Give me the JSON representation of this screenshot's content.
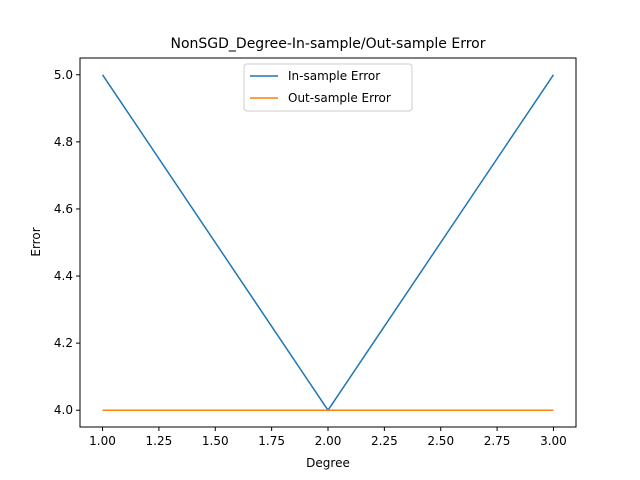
{
  "chart_data": {
    "type": "line",
    "title": "NonSGD_Degree-In-sample/Out-sample Error",
    "xlabel": "Degree",
    "ylabel": "Error",
    "xlim": [
      0.9,
      3.1
    ],
    "ylim": [
      3.95,
      5.05
    ],
    "xticks": [
      1.0,
      1.25,
      1.5,
      1.75,
      2.0,
      2.25,
      2.5,
      2.75,
      3.0
    ],
    "xtick_labels": [
      "1.00",
      "1.25",
      "1.50",
      "1.75",
      "2.00",
      "2.25",
      "2.50",
      "2.75",
      "3.00"
    ],
    "yticks": [
      4.0,
      4.2,
      4.4,
      4.6,
      4.8,
      5.0
    ],
    "ytick_labels": [
      "4.0",
      "4.2",
      "4.4",
      "4.6",
      "4.8",
      "5.0"
    ],
    "grid": false,
    "legend_position": "top-center",
    "x": [
      1,
      2,
      3
    ],
    "series": [
      {
        "name": "In-sample Error",
        "color": "#1f77b4",
        "values": [
          5.0,
          4.0,
          5.0
        ]
      },
      {
        "name": "Out-sample Error",
        "color": "#ff7f0e",
        "values": [
          4.0,
          4.0,
          4.0
        ]
      }
    ]
  }
}
